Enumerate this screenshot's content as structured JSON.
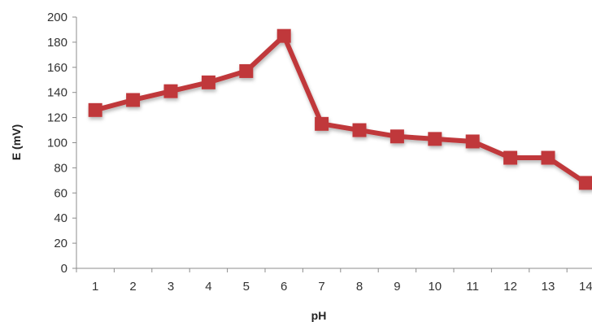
{
  "chart_data": {
    "type": "line",
    "xlabel": "pH",
    "ylabel": "E (mV)",
    "ylim": [
      0,
      200
    ],
    "y_ticks": [
      0,
      20,
      40,
      60,
      80,
      100,
      120,
      140,
      160,
      180,
      200
    ],
    "categories": [
      "1",
      "2",
      "3",
      "4",
      "5",
      "6",
      "7",
      "8",
      "9",
      "10",
      "11",
      "12",
      "13",
      "14"
    ],
    "grid": false,
    "legend": "none",
    "series": [
      {
        "color": "#c0393b",
        "marker": "square",
        "values": [
          126,
          134,
          141,
          148,
          157,
          185,
          115,
          110,
          105,
          103,
          101,
          88,
          88,
          68
        ]
      }
    ]
  }
}
